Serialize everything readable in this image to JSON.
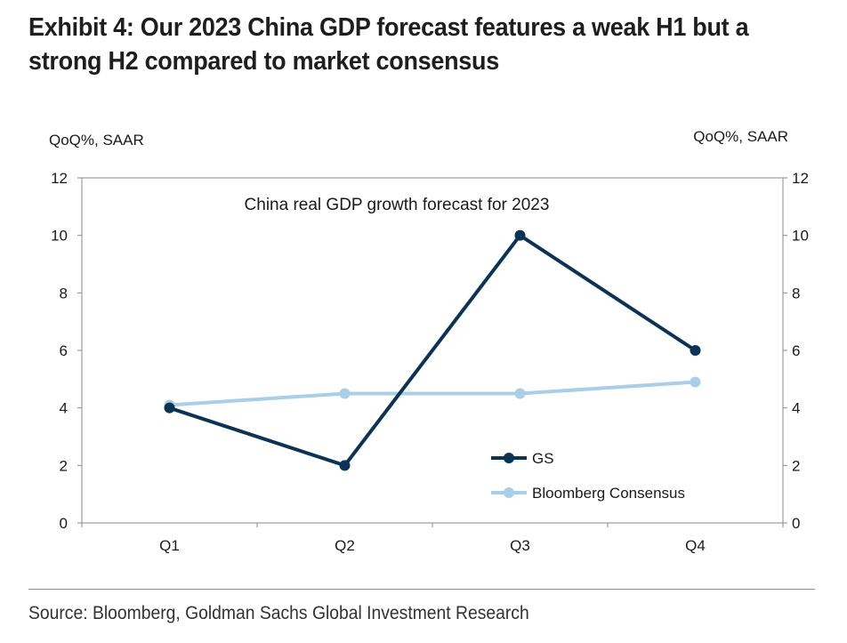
{
  "header": {
    "title": "Exhibit 4: Our 2023 China GDP forecast features a weak H1 but a strong H2 compared to market consensus"
  },
  "chart_data": {
    "type": "line",
    "title": "China real GDP growth forecast for 2023",
    "left_axis_label": "QoQ%, SAAR",
    "right_axis_label": "QoQ%, SAAR",
    "categories": [
      "Q1",
      "Q2",
      "Q3",
      "Q4"
    ],
    "ylim": [
      0,
      12
    ],
    "yticks": [
      0,
      2,
      4,
      6,
      8,
      10,
      12
    ],
    "grid": false,
    "legend_position": "bottom-right",
    "series": [
      {
        "name": "GS",
        "color": "#0b3356",
        "values": [
          4.0,
          2.0,
          10.0,
          6.0
        ]
      },
      {
        "name": "Bloomberg Consensus",
        "color": "#a9cfe8",
        "values": [
          4.1,
          4.5,
          4.5,
          4.9
        ]
      }
    ]
  },
  "footer": {
    "source": "Source: Bloomberg, Goldman Sachs Global Investment Research"
  }
}
